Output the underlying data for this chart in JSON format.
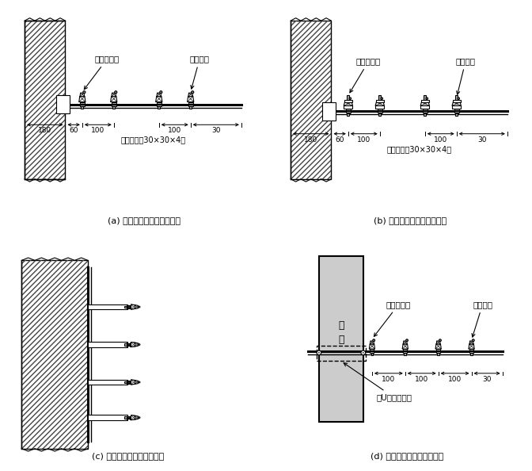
{
  "captions": [
    "(a) 针式绝缘子沿墙水平安装",
    "(b) 碟式绝缘子沿墙水平安装",
    "(c) 针式绝缘子沿墙垂直安装",
    "(d) 针式绝缘子跨柱水平安装"
  ],
  "label_a_top1": "针式绝缘子",
  "label_a_top2": "普通导线",
  "label_b_top1": "碟式绝缘子",
  "label_b_top2": "普通导线",
  "label_ab_bottom": "角钢支架（30×30×4）",
  "label_d_top1": "针式绝缘子",
  "label_d_top2": "普通导线",
  "label_d_bolt": "方U形抱箍螺栓",
  "label_column": "立\n柱",
  "bg_color": "#ffffff"
}
